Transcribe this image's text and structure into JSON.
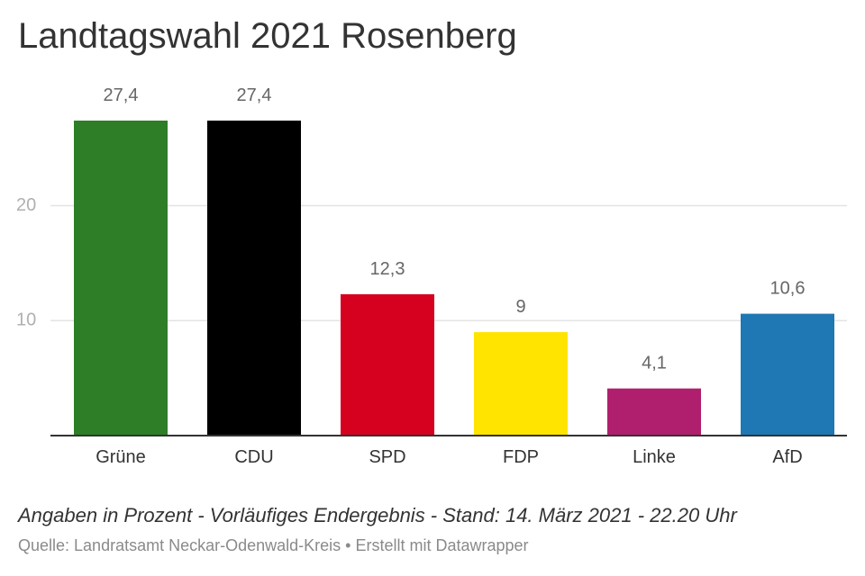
{
  "chart_data": {
    "type": "bar",
    "title": "Landtagswahl 2021 Rosenberg",
    "categories": [
      "Grüne",
      "CDU",
      "SPD",
      "FDP",
      "Linke",
      "AfD"
    ],
    "values": [
      27.4,
      27.4,
      12.3,
      9,
      4.1,
      10.6
    ],
    "value_labels": [
      "27,4",
      "27,4",
      "12,3",
      "9",
      "4,1",
      "10,6"
    ],
    "colors": [
      "#2e7d27",
      "#000000",
      "#d6001f",
      "#ffe400",
      "#b01f6e",
      "#1f77b4"
    ],
    "yticks": [
      10,
      20
    ],
    "ytick_labels": [
      "10",
      "20"
    ],
    "ylim": [
      0,
      27.4
    ],
    "grid": true,
    "legend": false
  },
  "footer": {
    "note": "Angaben in Prozent - Vorläufiges Endergebnis - Stand: 14. März 2021 - 22.20 Uhr",
    "source": "Quelle: Landratsamt Neckar-Odenwald-Kreis • Erstellt mit Datawrapper"
  }
}
